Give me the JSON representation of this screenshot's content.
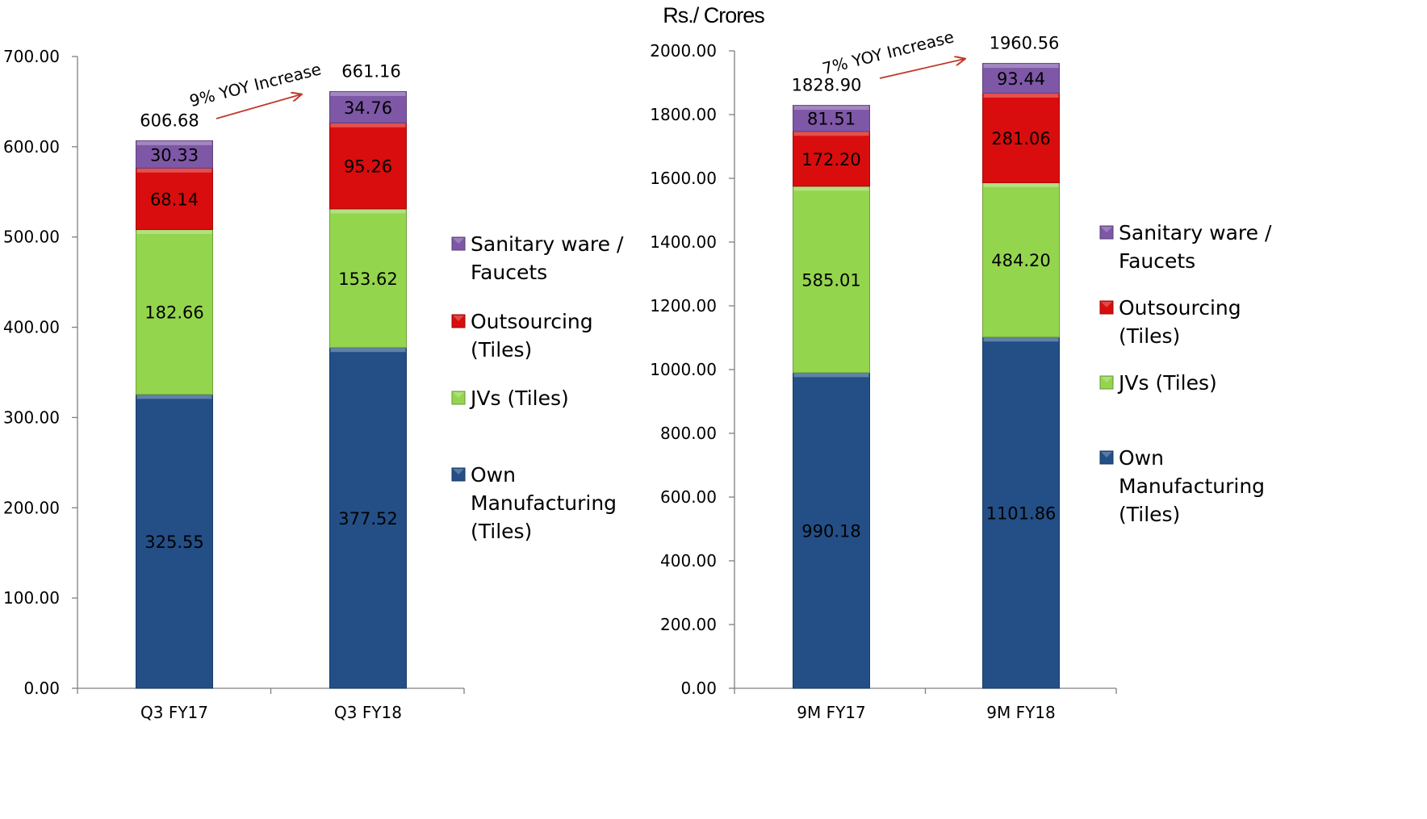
{
  "title": "Rs./ Crores",
  "colors": {
    "Sanitary ware / Faucets": "#7E58A6",
    "Outsourcing (Tiles)": "#D90D0D",
    "JVs (Tiles)": "#94D54E",
    "Own Manufacturing (Tiles)": "#234F86",
    "annotation_arrow": "#C0392B"
  },
  "chart_data": [
    {
      "type": "bar",
      "stacked": true,
      "categories": [
        "Q3 FY17",
        "Q3 FY18"
      ],
      "series": [
        {
          "name": "Own Manufacturing (Tiles)",
          "values": [
            325.55,
            377.52
          ]
        },
        {
          "name": "JVs (Tiles)",
          "values": [
            182.66,
            153.62
          ]
        },
        {
          "name": "Outsourcing (Tiles)",
          "values": [
            68.14,
            95.26
          ]
        },
        {
          "name": "Sanitary ware / Faucets",
          "values": [
            30.33,
            34.76
          ]
        }
      ],
      "totals": [
        "606.68",
        "661.16"
      ],
      "ylim": [
        0,
        700
      ],
      "yticks": [
        "0.00",
        "100.00",
        "200.00",
        "300.00",
        "400.00",
        "500.00",
        "600.00",
        "700.00"
      ],
      "annotation": "9% YOY Increase",
      "legend": [
        {
          "name": "Sanitary ware / Faucets",
          "lines": [
            "Sanitary ware /",
            "Faucets"
          ]
        },
        {
          "name": "Outsourcing (Tiles)",
          "lines": [
            "Outsourcing",
            "(Tiles)"
          ]
        },
        {
          "name": "JVs (Tiles)",
          "lines": [
            "JVs (Tiles)"
          ]
        },
        {
          "name": "Own Manufacturing (Tiles)",
          "lines": [
            "Own",
            "Manufacturing",
            "(Tiles)"
          ]
        }
      ],
      "legend_position": "right",
      "grid": false
    },
    {
      "type": "bar",
      "stacked": true,
      "categories": [
        "9M FY17",
        "9M FY18"
      ],
      "series": [
        {
          "name": "Own Manufacturing (Tiles)",
          "values": [
            990.18,
            1101.86
          ]
        },
        {
          "name": "JVs (Tiles)",
          "values": [
            585.01,
            484.2
          ]
        },
        {
          "name": "Outsourcing (Tiles)",
          "values": [
            172.2,
            281.06
          ]
        },
        {
          "name": "Sanitary ware / Faucets",
          "values": [
            81.51,
            93.44
          ]
        }
      ],
      "totals": [
        "1828.90",
        "1960.56"
      ],
      "ylim": [
        0,
        2000
      ],
      "yticks": [
        "0.00",
        "200.00",
        "400.00",
        "600.00",
        "800.00",
        "1000.00",
        "1200.00",
        "1400.00",
        "1600.00",
        "1800.00",
        "2000.00"
      ],
      "annotation": "7% YOY Increase",
      "legend": [
        {
          "name": "Sanitary ware / Faucets",
          "lines": [
            "Sanitary ware /",
            "Faucets"
          ]
        },
        {
          "name": "Outsourcing (Tiles)",
          "lines": [
            "Outsourcing",
            "(Tiles)"
          ]
        },
        {
          "name": "JVs (Tiles)",
          "lines": [
            "JVs (Tiles)"
          ]
        },
        {
          "name": "Own Manufacturing (Tiles)",
          "lines": [
            "Own",
            "Manufacturing",
            "(Tiles)"
          ]
        }
      ],
      "legend_position": "right",
      "grid": false
    }
  ]
}
